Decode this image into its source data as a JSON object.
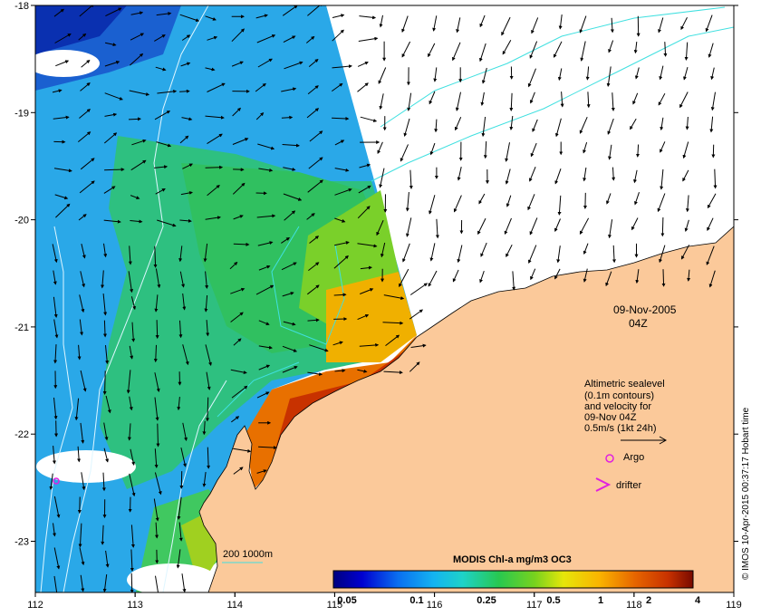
{
  "map": {
    "lat_labels": [
      "-18",
      "-19",
      "-20",
      "-21",
      "-22",
      "-23"
    ],
    "lon_labels": [
      "112",
      "113",
      "114",
      "115",
      "116",
      "117",
      "118",
      "119"
    ],
    "extent": {
      "lon_min": 112,
      "lon_max": 119,
      "lat_min": -23.5,
      "lat_max": -18
    }
  },
  "date": "09-Nov-2005",
  "time": "04Z",
  "legend": {
    "line1": "Altimetric sealevel",
    "line2": "(0.1m contours)",
    "line3": "and velocity for",
    "line4": "09-Nov 04Z",
    "line5": "0.5m/s (1kt 24h)",
    "argo": "Argo",
    "drifter": "drifter"
  },
  "isobath_label": "200  1000m",
  "colorbar": {
    "title": "MODIS Chl-a mg/m3 OC3",
    "ticks": [
      "0.05",
      "0.1",
      "0.25",
      "0.5",
      "1",
      "2",
      "4"
    ],
    "colors": [
      "#00007f",
      "#0000d0",
      "#0a4ff0",
      "#1496f0",
      "#1ec8dc",
      "#14d2a0",
      "#28c850",
      "#78d21e",
      "#d2e60a",
      "#fac800",
      "#f59600",
      "#e66400",
      "#c83200",
      "#a01400",
      "#780a00"
    ]
  },
  "credit": "© IMOS 10-Apr-2015 00:37:17 Hobart time",
  "colors": {
    "land": "#fbc99a",
    "no_data": "#ffffff",
    "contour": "#40e0e0",
    "isobath": "#c8f0ff",
    "argo": "#e020e0"
  }
}
